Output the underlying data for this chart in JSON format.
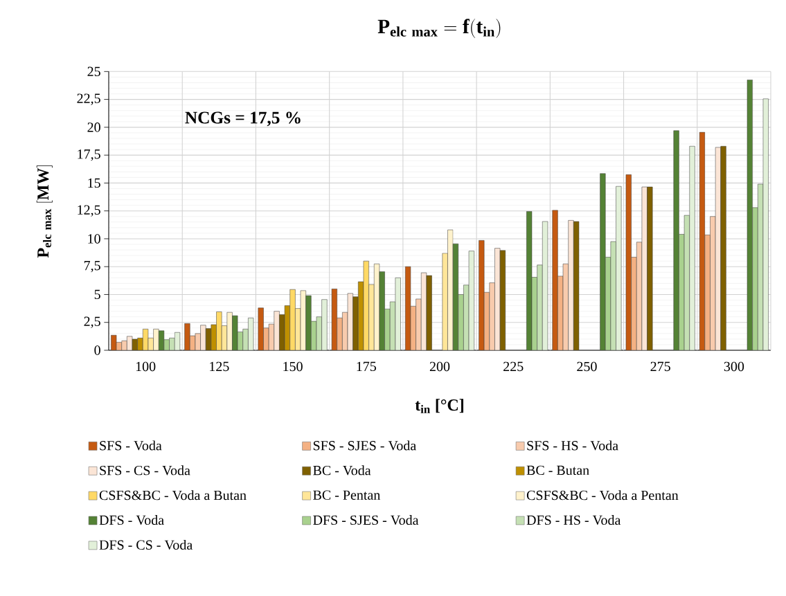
{
  "chart_data": {
    "type": "bar",
    "title": "\\mathbf{P_{elc\\ max} = f(t_{in})}",
    "xlabel": "t$_{in}$ [°C]",
    "ylabel": "\\mathbf{P_{elc\\ max}\\ [MW]}",
    "annotations": [
      "NCGs = 17,5 %"
    ],
    "categories": [
      "100",
      "125",
      "150",
      "175",
      "200",
      "225",
      "250",
      "275",
      "300"
    ],
    "ylim": [
      0,
      25
    ],
    "yticks": [
      0,
      {
        "value": 2.5,
        "label": "2,5"
      },
      5,
      {
        "value": 7.5,
        "label": "7,5"
      },
      10,
      {
        "value": 12.5,
        "label": "12,5"
      },
      15,
      {
        "value": 17.5,
        "label": "17,5"
      },
      20,
      {
        "value": 22.5,
        "label": "22,5"
      },
      25
    ],
    "grid": true,
    "legend": "bottom",
    "series": [
      {
        "name": "SFS - Voda",
        "color": "#c55a11",
        "values": [
          1.35,
          2.4,
          3.8,
          5.5,
          7.5,
          9.85,
          12.55,
          15.75,
          19.55
        ]
      },
      {
        "name": "SFS - SJES - Voda",
        "color": "#f4b183",
        "values": [
          0.72,
          1.3,
          2.0,
          2.9,
          3.95,
          5.2,
          6.65,
          8.35,
          10.35
        ]
      },
      {
        "name": "SFS - HS - Voda",
        "color": "#f8cbad",
        "values": [
          0.85,
          1.5,
          2.35,
          3.4,
          4.6,
          6.05,
          7.75,
          9.7,
          12.0
        ]
      },
      {
        "name": "SFS - CS - Voda",
        "color": "#fbe5d6",
        "values": [
          1.25,
          2.25,
          3.5,
          5.1,
          6.95,
          9.15,
          11.65,
          14.65,
          18.2
        ]
      },
      {
        "name": "BC - Voda",
        "color": "#7f6000",
        "values": [
          1.0,
          1.95,
          3.2,
          4.8,
          6.7,
          8.95,
          11.55,
          14.65,
          18.3
        ]
      },
      {
        "name": "BC - Butan",
        "color": "#bf9000",
        "values": [
          1.1,
          2.3,
          4.0,
          6.15,
          null,
          null,
          null,
          null,
          null
        ]
      },
      {
        "name": "CSFS&BC - Voda a Butan",
        "color": "#ffd966",
        "values": [
          1.9,
          3.45,
          5.45,
          8.0,
          null,
          null,
          null,
          null,
          null
        ]
      },
      {
        "name": "BC - Pentan",
        "color": "#ffe699",
        "values": [
          1.1,
          2.2,
          3.75,
          5.9,
          8.7,
          null,
          null,
          null,
          null
        ]
      },
      {
        "name": "CSFS&BC - Voda a Pentan",
        "color": "#fff2cc",
        "values": [
          1.9,
          3.4,
          5.35,
          7.75,
          10.8,
          null,
          null,
          null,
          null
        ]
      },
      {
        "name": "DFS - Voda",
        "color": "#548235",
        "values": [
          1.75,
          3.1,
          4.9,
          7.05,
          9.55,
          12.45,
          15.85,
          19.7,
          24.25
        ]
      },
      {
        "name": "DFS - SJES - Voda",
        "color": "#a9d18e",
        "values": [
          0.95,
          1.65,
          2.6,
          3.7,
          5.0,
          6.55,
          8.35,
          10.4,
          12.8
        ]
      },
      {
        "name": "DFS - HS - Voda",
        "color": "#c5e0b4",
        "values": [
          1.1,
          1.9,
          3.0,
          4.35,
          5.85,
          7.65,
          9.75,
          12.1,
          14.9
        ]
      },
      {
        "name": "DFS - CS - Voda",
        "color": "#e2f0d9",
        "values": [
          1.6,
          2.9,
          4.55,
          6.5,
          8.9,
          11.55,
          14.7,
          18.3,
          22.55
        ]
      }
    ]
  }
}
